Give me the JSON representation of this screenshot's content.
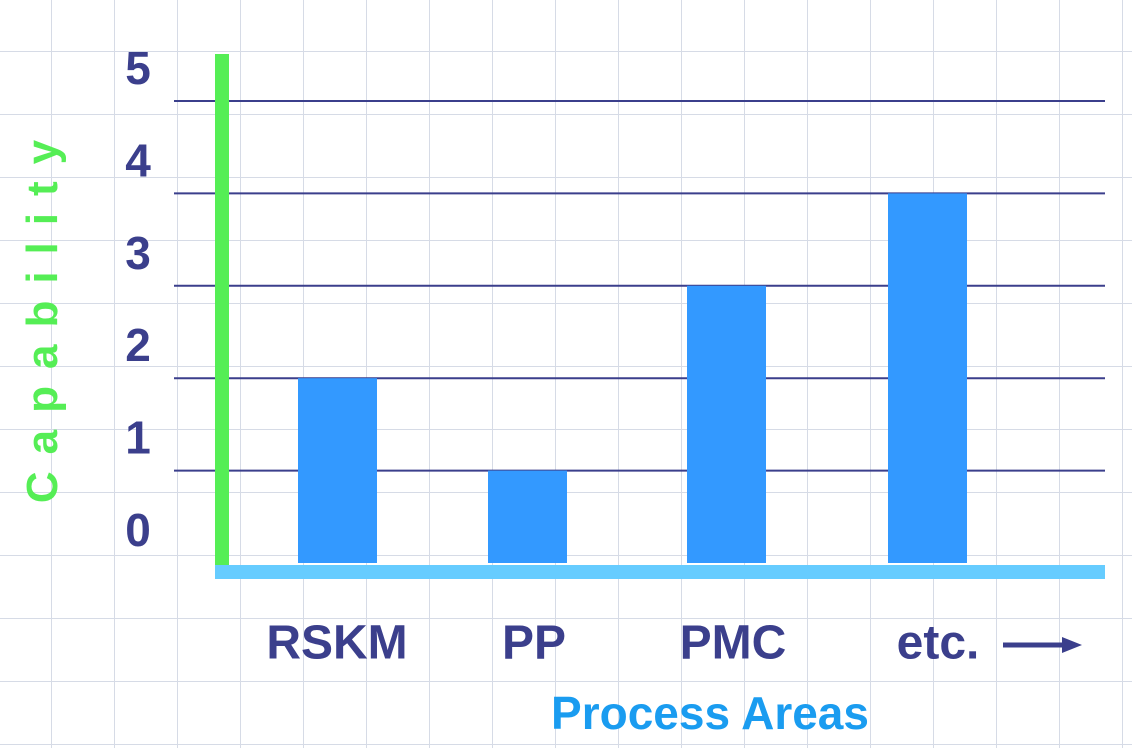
{
  "chart_data": {
    "type": "bar",
    "title": "",
    "ylabel": "Capability",
    "xlabel": "Process Areas",
    "categories": [
      "RSKM",
      "PP",
      "PMC",
      "etc."
    ],
    "values": [
      2,
      1,
      3,
      4
    ],
    "ylim": [
      0,
      5
    ],
    "yticks": [
      "0",
      "1",
      "2",
      "3",
      "4",
      "5"
    ],
    "grid": true,
    "legend": "none"
  },
  "colors": {
    "bar": "#3399ff",
    "tick_text": "#3b3f8c",
    "gridline": "#3b3f8c",
    "y_axis": "#55ee55",
    "x_axis": "#66ccff",
    "ylabel": "#55ee55",
    "xlabel": "#1a9cf0"
  }
}
